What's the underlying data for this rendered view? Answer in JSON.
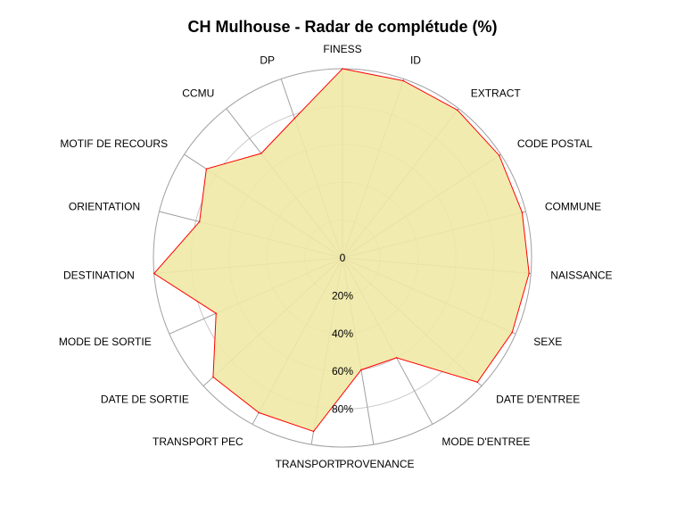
{
  "chart_data": {
    "type": "radar",
    "title": "CH Mulhouse - Radar de complétude (%)",
    "axes": [
      "FINESS",
      "ID",
      "EXTRACT",
      "CODE POSTAL",
      "COMMUNE",
      "NAISSANCE",
      "SEXE",
      "DATE D'ENTREE",
      "MODE D'ENTREE",
      "PROVENANCE",
      "TRANSPORT",
      "TRANSPORT PEC",
      "DATE DE SORTIE",
      "MODE DE SORTIE",
      "DESTINATION",
      "ORIENTATION",
      "MOTIF DE RECOURS",
      "CCMU",
      "DP"
    ],
    "values": [
      100,
      99,
      99,
      99,
      98,
      99,
      98,
      97,
      60,
      60,
      93,
      93,
      93,
      73,
      100,
      78,
      86,
      70,
      78
    ],
    "rlim": [
      0,
      100
    ],
    "ticks": [
      "0",
      "20%",
      "40%",
      "60%",
      "80%"
    ],
    "tick_values": [
      0,
      20,
      40,
      60,
      80
    ],
    "colors": {
      "fill": "#f0e9a6",
      "line": "#ff0000",
      "grid": "#c8c8c8",
      "outer": "#a0a0a0"
    }
  }
}
